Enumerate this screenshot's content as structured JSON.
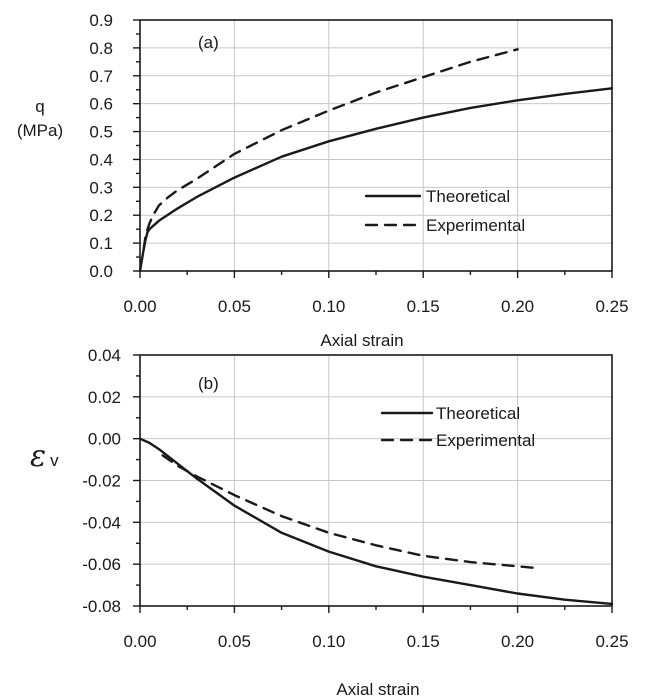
{
  "chart_data": [
    {
      "type": "line",
      "panel_label": "(a)",
      "ylabel_line1": "q",
      "ylabel_line2": "(MPa)",
      "xlabel": "Axial strain",
      "xlim": [
        0,
        0.25
      ],
      "ylim": [
        0,
        0.9
      ],
      "xticks": [
        "0.00",
        "0.05",
        "0.10",
        "0.15",
        "0.20",
        "0.25"
      ],
      "yticks": [
        "0.0",
        "0.1",
        "0.2",
        "0.3",
        "0.4",
        "0.5",
        "0.6",
        "0.7",
        "0.8",
        "0.9"
      ],
      "grid": true,
      "legend_position": "center-right",
      "series": [
        {
          "name": "Theoretical",
          "style": "solid",
          "x": [
            0,
            0.001,
            0.002,
            0.003,
            0.004,
            0.005,
            0.01,
            0.02,
            0.03,
            0.05,
            0.075,
            0.1,
            0.125,
            0.15,
            0.175,
            0.2,
            0.225,
            0.25
          ],
          "y": [
            0,
            0.04,
            0.08,
            0.115,
            0.14,
            0.15,
            0.18,
            0.225,
            0.265,
            0.335,
            0.41,
            0.465,
            0.51,
            0.55,
            0.585,
            0.612,
            0.635,
            0.655
          ]
        },
        {
          "name": "Experimental",
          "style": "dashed",
          "x": [
            0.002,
            0.003,
            0.005,
            0.007,
            0.01,
            0.015,
            0.02,
            0.03,
            0.05,
            0.075,
            0.1,
            0.125,
            0.15,
            0.175,
            0.2
          ],
          "y": [
            0.08,
            0.13,
            0.17,
            0.2,
            0.235,
            0.265,
            0.29,
            0.33,
            0.42,
            0.505,
            0.575,
            0.64,
            0.695,
            0.75,
            0.795
          ]
        }
      ]
    },
    {
      "type": "line",
      "panel_label": "(b)",
      "ylabel_symbol": "ε",
      "ylabel_subscript": "v",
      "xlabel": "Axial strain",
      "xlim": [
        0,
        0.25
      ],
      "ylim": [
        -0.08,
        0.04
      ],
      "xticks": [
        "0.00",
        "0.05",
        "0.10",
        "0.15",
        "0.20",
        "0.25"
      ],
      "yticks": [
        "0.04",
        "0.02",
        "0.00",
        "-0.02",
        "-0.04",
        "-0.06",
        "-0.08"
      ],
      "grid": true,
      "legend_position": "top-right",
      "series": [
        {
          "name": "Theoretical",
          "style": "solid",
          "x": [
            0,
            0.005,
            0.01,
            0.02,
            0.03,
            0.05,
            0.075,
            0.1,
            0.125,
            0.15,
            0.175,
            0.2,
            0.225,
            0.25
          ],
          "y": [
            0,
            -0.002,
            -0.005,
            -0.012,
            -0.019,
            -0.032,
            -0.045,
            -0.054,
            -0.061,
            -0.066,
            -0.07,
            -0.074,
            -0.077,
            -0.079
          ]
        },
        {
          "name": "Experimental",
          "style": "dashed",
          "x": [
            0.012,
            0.02,
            0.03,
            0.05,
            0.075,
            0.1,
            0.125,
            0.15,
            0.175,
            0.2,
            0.212
          ],
          "y": [
            -0.008,
            -0.013,
            -0.018,
            -0.027,
            -0.037,
            -0.045,
            -0.051,
            -0.056,
            -0.059,
            -0.061,
            -0.062
          ]
        }
      ]
    }
  ]
}
